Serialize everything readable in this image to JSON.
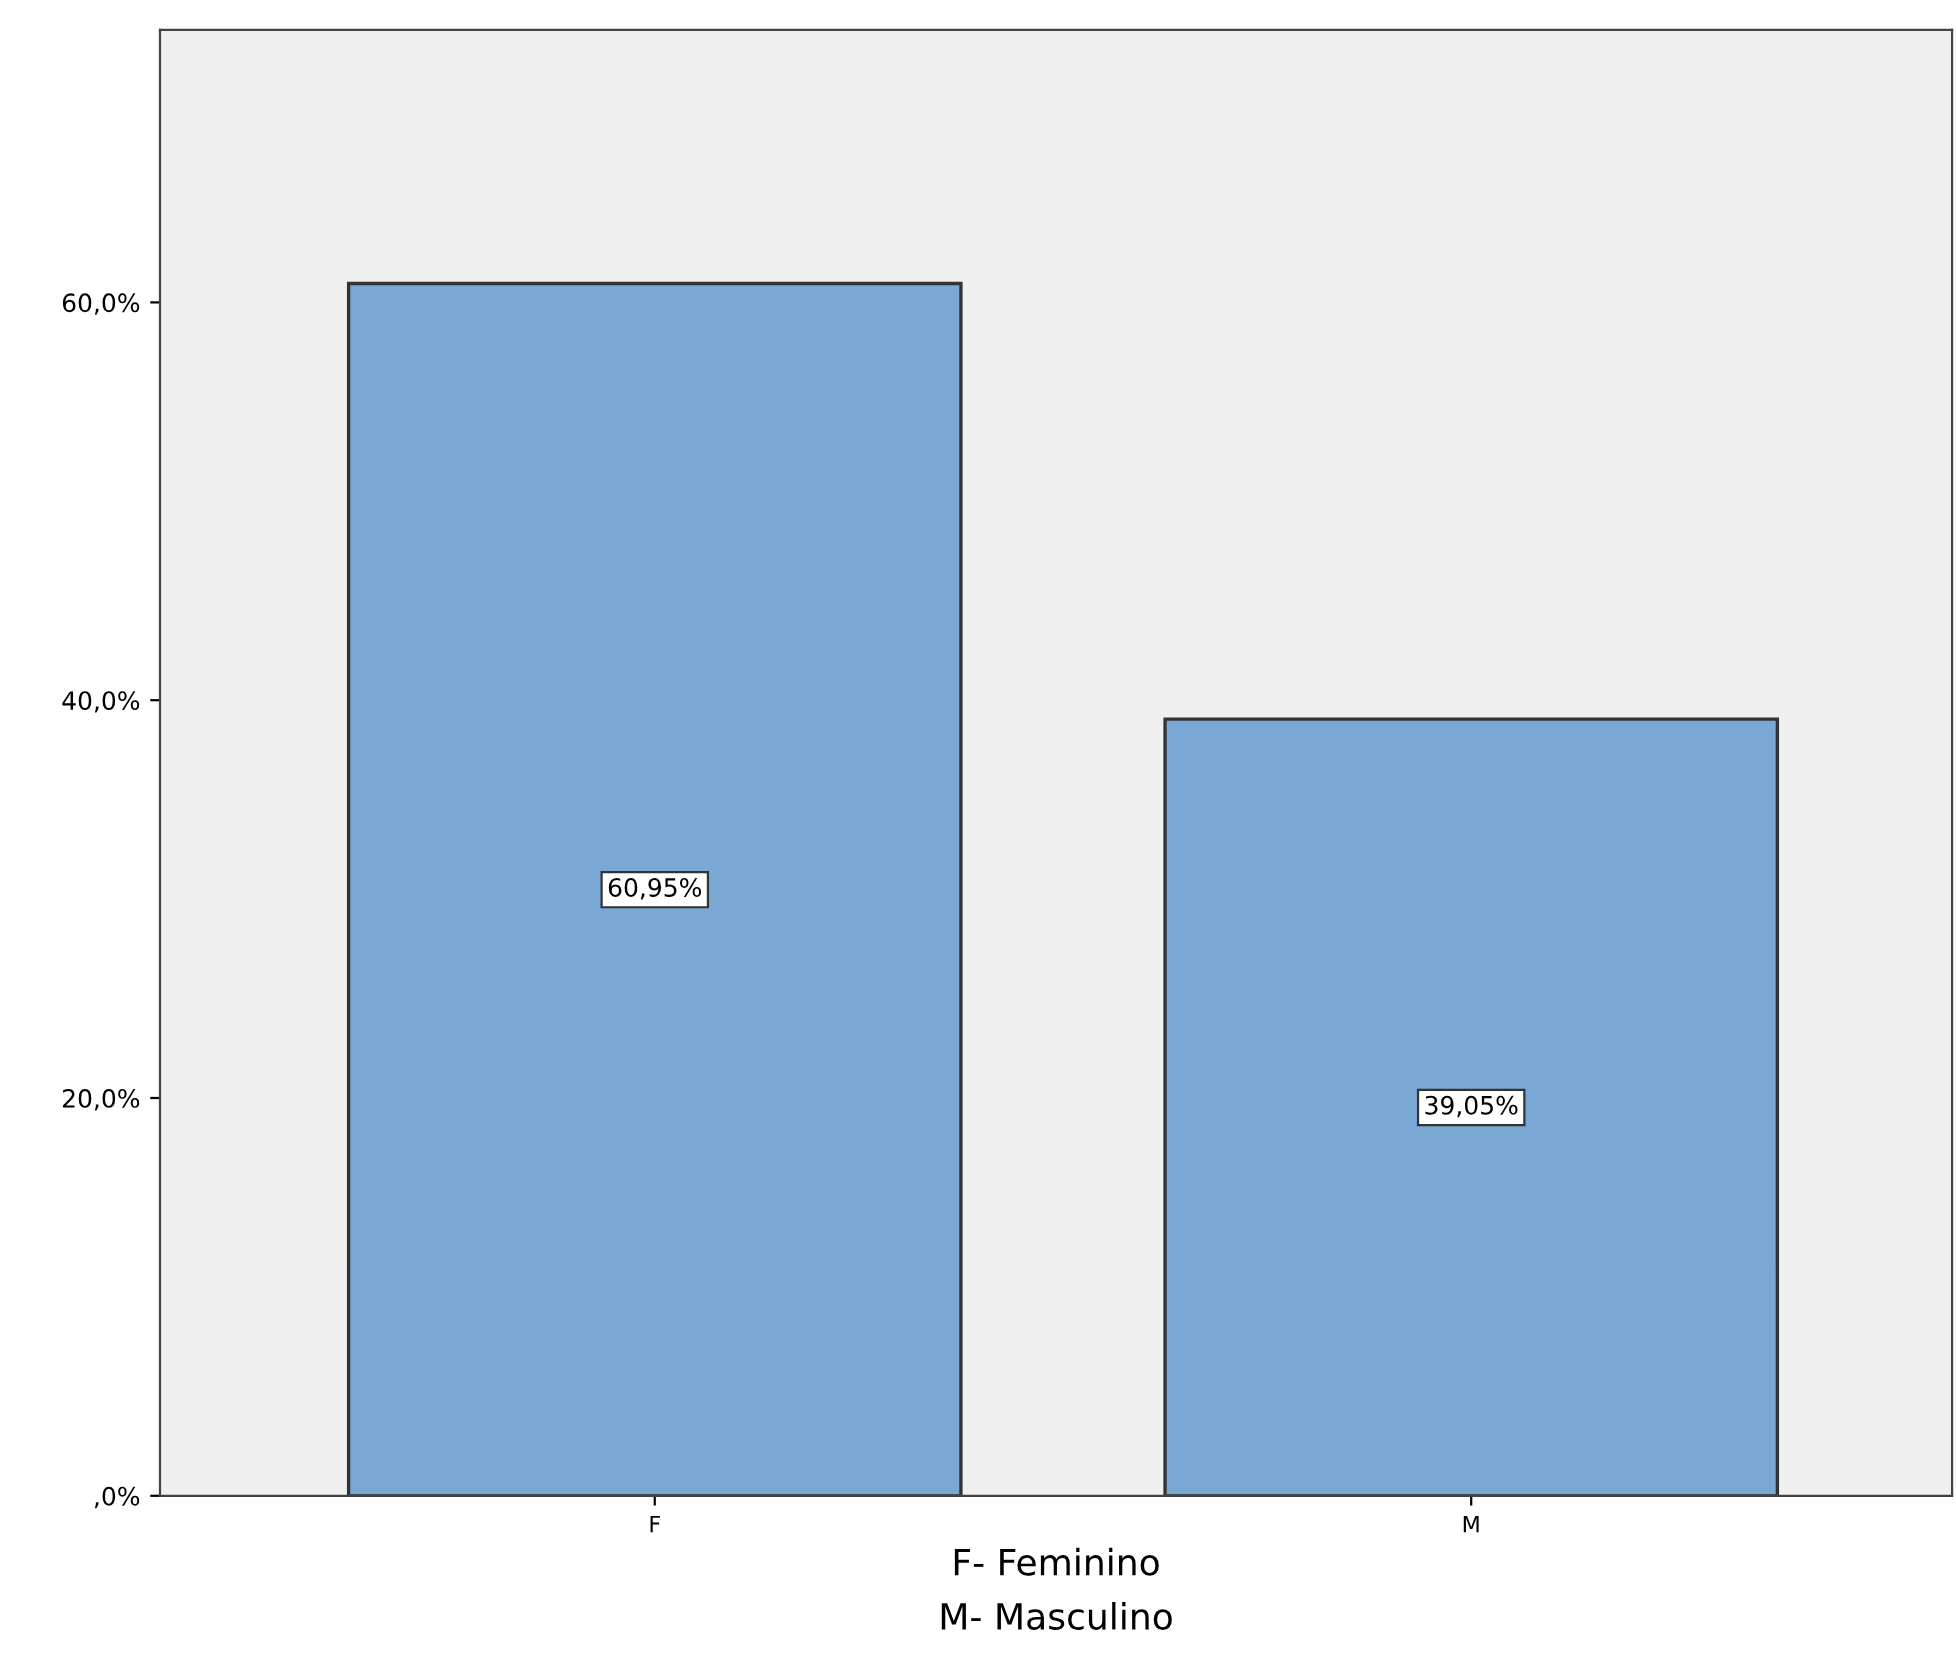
{
  "chart_data": {
    "type": "bar",
    "xlabel": "F- Feminino\nM- Masculino",
    "categories": [
      "F",
      "M"
    ],
    "values": [
      60.95,
      39.05
    ],
    "value_labels": [
      "60,95%",
      "39,05%"
    ],
    "color": "#7aa8d5",
    "ylim": [
      0,
      73.7
    ],
    "yticks": [
      {
        "value": 0,
        "label": ",0%"
      },
      {
        "value": 20,
        "label": "20,0%"
      },
      {
        "value": 40,
        "label": "40,0%"
      },
      {
        "value": 60,
        "label": "60,0%"
      }
    ],
    "grid": false,
    "legend": false
  }
}
